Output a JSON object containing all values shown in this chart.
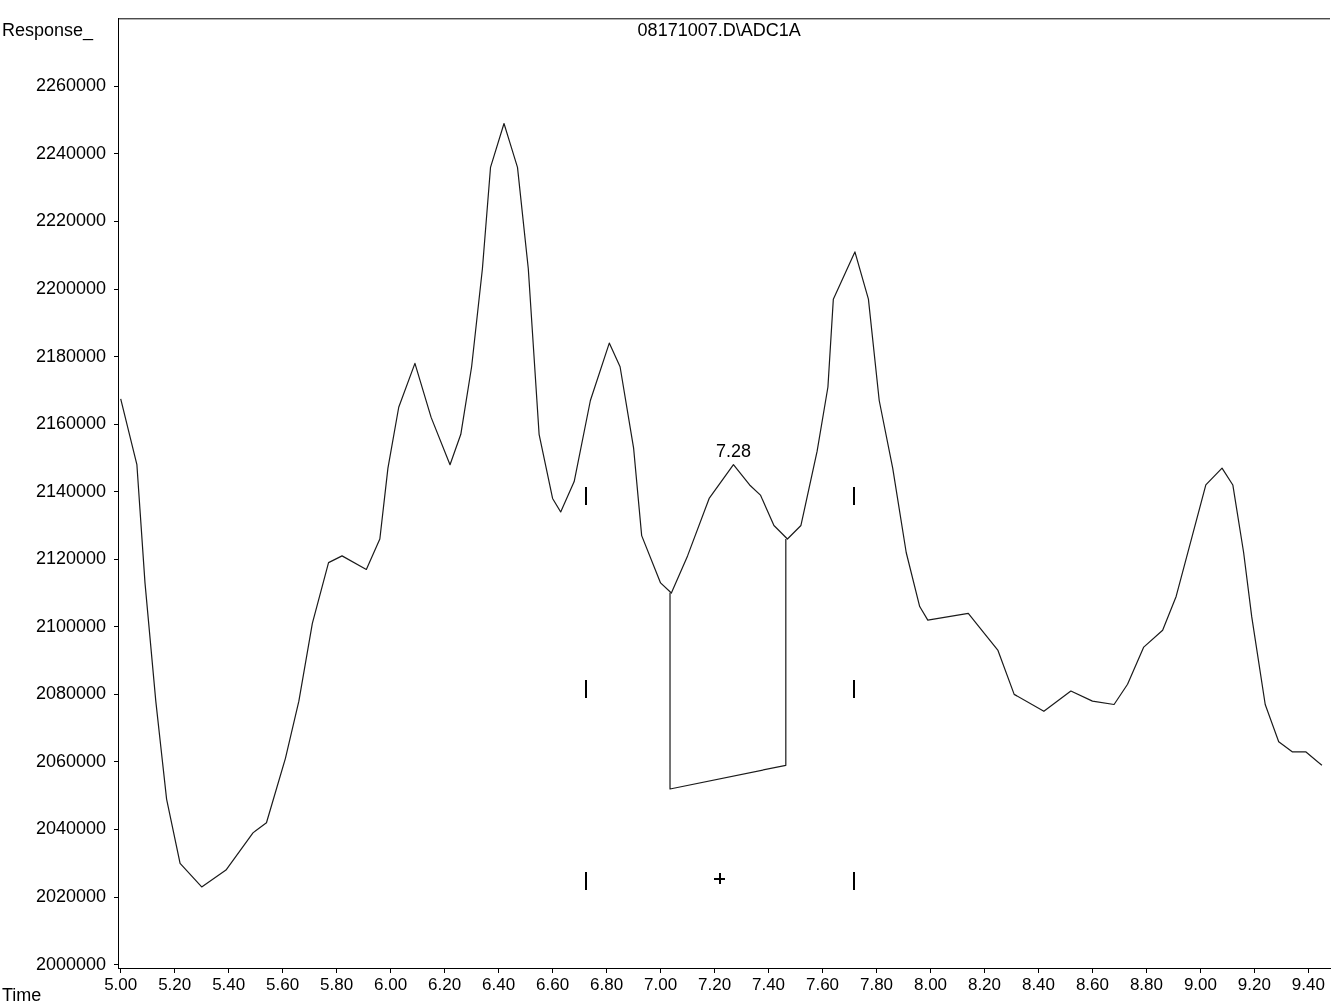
{
  "chart_data": {
    "type": "line",
    "title": "08171007.D\\ADC1A",
    "ylabel": "Response_",
    "xlabel": "Time",
    "xlim": [
      4.99,
      9.48
    ],
    "xticks": [
      {
        "value": 5,
        "label": "5.00"
      },
      {
        "value": 5.2,
        "label": "5.20"
      },
      {
        "value": 5.4,
        "label": "5.40"
      },
      {
        "value": 5.6,
        "label": "5.60"
      },
      {
        "value": 5.8,
        "label": "5.80"
      },
      {
        "value": 6,
        "label": "6.00"
      },
      {
        "value": 6.2,
        "label": "6.20"
      },
      {
        "value": 6.4,
        "label": "6.40"
      },
      {
        "value": 6.6,
        "label": "6.60"
      },
      {
        "value": 6.8,
        "label": "6.80"
      },
      {
        "value": 7,
        "label": "7.00"
      },
      {
        "value": 7.2,
        "label": "7.20"
      },
      {
        "value": 7.4,
        "label": "7.40"
      },
      {
        "value": 7.6,
        "label": "7.60"
      },
      {
        "value": 7.8,
        "label": "7.80"
      },
      {
        "value": 8,
        "label": "8.00"
      },
      {
        "value": 8.2,
        "label": "8.20"
      },
      {
        "value": 8.4,
        "label": "8.40"
      },
      {
        "value": 8.6,
        "label": "8.60"
      },
      {
        "value": 8.8,
        "label": "8.80"
      },
      {
        "value": 9,
        "label": "9.00"
      },
      {
        "value": 9.2,
        "label": "9.20"
      },
      {
        "value": 9.4,
        "label": "9.40"
      }
    ],
    "ylim": [
      1999000,
      2280000
    ],
    "yticks": [
      2000000,
      2020000,
      2040000,
      2060000,
      2080000,
      2100000,
      2120000,
      2140000,
      2160000,
      2180000,
      2200000,
      2220000,
      2240000,
      2260000
    ],
    "grid": false,
    "legend": false,
    "marker": "none",
    "line_style": "solid",
    "annotations": [
      {
        "text": "7.28",
        "x": 7.27,
        "y": 2148000
      }
    ],
    "series": [
      {
        "color": "#1a1a1a",
        "x": [
          5.0,
          5.06,
          5.09,
          5.13,
          5.17,
          5.22,
          5.3,
          5.39,
          5.49,
          5.54,
          5.61,
          5.66,
          5.71,
          5.77,
          5.82,
          5.91,
          5.96,
          5.99,
          6.03,
          6.09,
          6.15,
          6.22,
          6.26,
          6.3,
          6.34,
          6.37,
          6.42,
          6.47,
          6.51,
          6.55,
          6.6,
          6.63,
          6.68,
          6.74,
          6.81,
          6.85,
          6.9,
          6.93,
          7.0,
          7.04,
          7.1,
          7.18,
          7.27,
          7.33,
          7.37,
          7.42,
          7.47,
          7.52,
          7.58,
          7.62,
          7.64,
          7.72,
          7.77,
          7.81,
          7.86,
          7.91,
          7.96,
          7.99,
          8.14,
          8.18,
          8.25,
          8.31,
          8.42,
          8.52,
          8.6,
          8.68,
          8.73,
          8.79,
          8.86,
          8.91,
          8.97,
          9.02,
          9.08,
          9.12,
          9.16,
          9.19,
          9.24,
          9.29,
          9.34,
          9.39,
          9.45
        ],
        "values": [
          2167500,
          2148000,
          2113000,
          2078000,
          2049000,
          2030000,
          2023000,
          2028000,
          2039000,
          2042000,
          2061000,
          2078000,
          2101000,
          2119000,
          2121000,
          2117000,
          2126000,
          2147000,
          2165000,
          2178000,
          2162000,
          2148000,
          2157000,
          2177000,
          2206000,
          2236000,
          2249000,
          2236000,
          2206000,
          2157000,
          2138000,
          2134000,
          2143000,
          2167000,
          2184000,
          2177000,
          2153000,
          2127000,
          2113000,
          2110000,
          2121000,
          2138000,
          2148000,
          2142000,
          2139000,
          2130000,
          2126000,
          2130000,
          2152000,
          2171000,
          2197000,
          2211000,
          2197000,
          2167000,
          2147000,
          2122000,
          2106000,
          2102000,
          2104000,
          2100000,
          2093000,
          2080000,
          2075000,
          2081000,
          2078000,
          2077000,
          2083000,
          2094000,
          2099000,
          2109000,
          2127000,
          2142000,
          2147000,
          2142000,
          2122000,
          2103000,
          2077000,
          2066000,
          2063000,
          2063000,
          2059000
        ]
      },
      {
        "type": "line",
        "color": "#1a1a1a",
        "x": [
          7.035,
          7.035,
          7.464,
          7.464
        ],
        "values": [
          2110000,
          2052000,
          2059000,
          2126000
        ]
      }
    ]
  }
}
